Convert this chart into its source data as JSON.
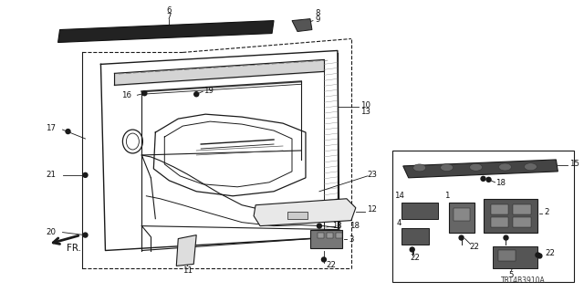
{
  "bg_color": "#ffffff",
  "line_color": "#1a1a1a",
  "diagram_code": "TRT4B3910A",
  "fig_w": 6.4,
  "fig_h": 3.2,
  "dpi": 100
}
